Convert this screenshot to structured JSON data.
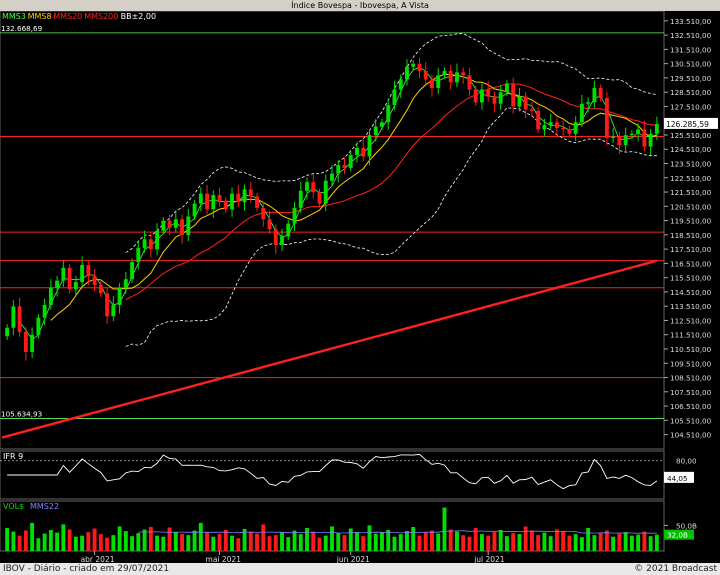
{
  "window_title": "Índice Bovespa - Ibovespa, A Vista",
  "footer": {
    "left": "IBOV - Diário - criado em 29/07/2021",
    "right": "© 2021 Broadcast"
  },
  "colors": {
    "up": "#00e000",
    "down": "#ff1a1a",
    "mms3": "#40ff40",
    "mms8": "#ffd000",
    "mms20": "#ff2020",
    "mms200": "#ff2020",
    "bb": "#ffffff",
    "level_line": "#ff2020",
    "ref_line": "#60ff60",
    "ifr": "#ffffff"
  },
  "legend": [
    {
      "label": "MMS3",
      "color": "#40ff40"
    },
    {
      "label": "MMS8",
      "color": "#ffd000"
    },
    {
      "label": "MMS20",
      "color": "#ff2020"
    },
    {
      "label": "MMS200",
      "color": "#ff2020"
    },
    {
      "label": "BB±2,00",
      "color": "#ffffff"
    }
  ],
  "chart_data": [
    {
      "type": "candlestick",
      "title": "Índice Bovespa - Ibovespa, A Vista",
      "y_ticks": [
        "133.510,00",
        "132.510,00",
        "131.510,00",
        "130.510,00",
        "129.510,00",
        "128.510,00",
        "127.510,00",
        "126.510,00",
        "125.510,00",
        "124.510,00",
        "123.510,00",
        "122.510,00",
        "121.510,00",
        "120.510,00",
        "119.510,00",
        "118.510,00",
        "117.510,00",
        "116.510,00",
        "115.510,00",
        "114.510,00",
        "113.510,00",
        "112.510,00",
        "111.510,00",
        "110.510,00",
        "109.510,00",
        "108.510,00",
        "107.510,00",
        "106.510,00",
        "105.510,00",
        "104.510,00"
      ],
      "ylim": [
        103500,
        134200
      ],
      "x_ticks": [
        "abr 2021",
        "mai 2021",
        "jun 2021",
        "jul 2021"
      ],
      "last_price_label": "126.285,59",
      "last_price": 126285.59,
      "annotations": [
        {
          "label": "132.668,69",
          "value": 132668.69
        },
        {
          "label": "105.634,93",
          "value": 105634.93
        }
      ],
      "horizontal_levels": [
        125400,
        118700,
        116700,
        114800,
        108500
      ],
      "mms200": {
        "start": 104300,
        "end": 116700
      },
      "closes": [
        112000,
        113500,
        111700,
        110300,
        111500,
        112700,
        113600,
        114800,
        115300,
        116200,
        114700,
        115200,
        116400,
        115600,
        115000,
        114400,
        112800,
        113600,
        114800,
        115400,
        116600,
        117600,
        118200,
        117500,
        118800,
        119500,
        119000,
        119600,
        118500,
        119800,
        120700,
        121400,
        120300,
        121300,
        120900,
        120300,
        121400,
        120800,
        121700,
        121200,
        120400,
        119600,
        118900,
        117800,
        118400,
        119300,
        120400,
        121600,
        122200,
        121500,
        120700,
        122300,
        122800,
        123400,
        123200,
        124100,
        124600,
        124000,
        125500,
        126100,
        126400,
        127600,
        128700,
        129400,
        130300,
        130500,
        130000,
        129400,
        128800,
        129700,
        130000,
        129200,
        129900,
        129700,
        128700,
        127800,
        128700,
        128200,
        127700,
        128500,
        129100,
        127500,
        128200,
        127300,
        127200,
        125900,
        126200,
        126400,
        126000,
        125900,
        125600,
        126400,
        127700,
        127800,
        128800,
        128100,
        125300,
        125400,
        124800,
        125500,
        125600,
        125900,
        124700,
        125600,
        126285
      ]
    },
    {
      "type": "line",
      "title": "IFR 9",
      "series_name": "IFR 9",
      "ylim": [
        0,
        100
      ],
      "level_label": "80,00",
      "last_value_label": "44,05",
      "last_value": 44.05
    },
    {
      "type": "bar",
      "title": "VOL$",
      "series_name": "MMS22",
      "tick_label": "50,0B",
      "last_value_label": "32,0B",
      "last_value": 32.0,
      "values": [
        45,
        38,
        30,
        40,
        55,
        25,
        34,
        41,
        36,
        52,
        42,
        28,
        30,
        37,
        44,
        33,
        26,
        31,
        48,
        39,
        29,
        35,
        42,
        47,
        30,
        28,
        46,
        37,
        33,
        31,
        40,
        55,
        36,
        28,
        33,
        41,
        30,
        25,
        43,
        38,
        34,
        52,
        29,
        31,
        36,
        27,
        40,
        33,
        45,
        38,
        26,
        30,
        48,
        35,
        31,
        44,
        37,
        29,
        50,
        34,
        36,
        41,
        28,
        33,
        39,
        47,
        30,
        36,
        40,
        34,
        85,
        42,
        38,
        31,
        28,
        45,
        33,
        30,
        37,
        41,
        29,
        35,
        33,
        48,
        40,
        31,
        36,
        29,
        42,
        38,
        30,
        33,
        27,
        45,
        31,
        36,
        40,
        28,
        34,
        37,
        30,
        32,
        38,
        29,
        32
      ],
      "ylim": [
        0,
        90
      ]
    }
  ]
}
